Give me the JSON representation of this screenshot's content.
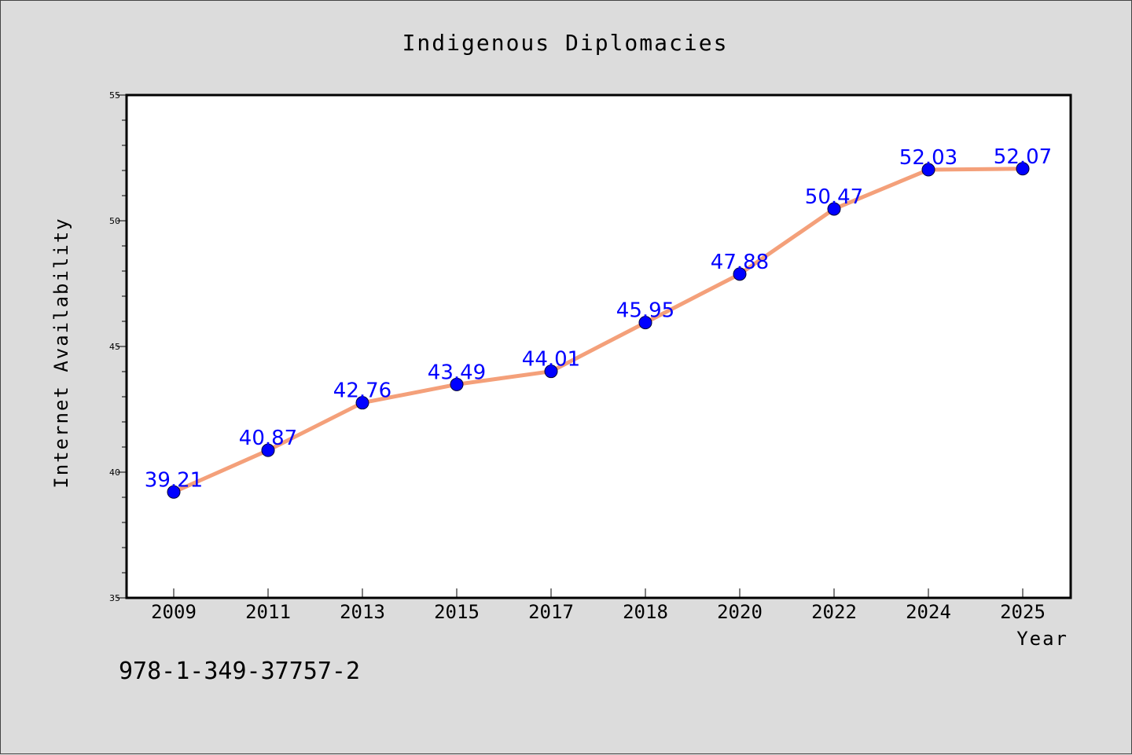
{
  "chart_data": {
    "type": "line",
    "title": "Indigenous Diplomacies",
    "xlabel": "Year",
    "ylabel": "Internet Availability",
    "categories": [
      "2009",
      "2011",
      "2013",
      "2015",
      "2017",
      "2018",
      "2020",
      "2022",
      "2024",
      "2025"
    ],
    "series": [
      {
        "values": [
          39.21,
          40.87,
          42.76,
          43.49,
          44.01,
          45.95,
          47.88,
          50.47,
          52.03,
          52.07
        ],
        "data_labels": [
          "39.21",
          "40.87",
          "42.76",
          "43.49",
          "44.01",
          "45.95",
          "47.88",
          "50.47",
          "52.03",
          "52.07"
        ],
        "line_color": "#f4a07a",
        "marker_color": "#0000ff"
      }
    ],
    "ylim": [
      35,
      55
    ],
    "yticks": [
      "35",
      "40",
      "45",
      "50",
      "55"
    ],
    "grid": false,
    "legend": "none"
  },
  "footer_text": "978-1-349-37757-2"
}
